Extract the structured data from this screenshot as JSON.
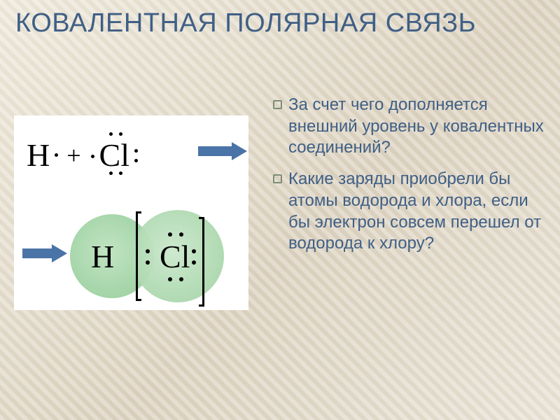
{
  "slide": {
    "title": "КОВАЛЕНТНАЯ ПОЛЯРНАЯ СВЯЗЬ",
    "title_color": "#3f5f86",
    "title_fontsize": 38
  },
  "bullets": {
    "items": [
      "За счет чего дополняется внешний уровень у ковалентных соединений?",
      "Какие заряды приобрели бы атомы водорода и хлора, если бы электрон совсем перешел от водорода к хлору?"
    ],
    "color": "#3f5f86",
    "fontsize": 24,
    "marker_color": "#7c8d77"
  },
  "diagram": {
    "formula": {
      "h_symbol": "H",
      "plus": "+",
      "cl_symbol": "Cl"
    },
    "overlap": {
      "h_symbol": "H",
      "cl_symbol": "Cl",
      "circle_h_color": "#a7d6ab",
      "circle_cl_color": "#b0dab2"
    },
    "arrow_color": "#4a74a7",
    "background": "#ffffff"
  },
  "background": {
    "gradient_from": "#efe9db",
    "gradient_to": "#dcd2bf"
  }
}
